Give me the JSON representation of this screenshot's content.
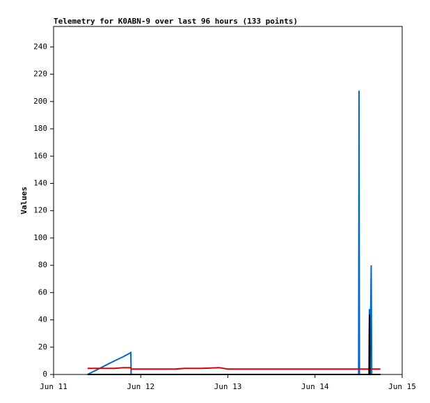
{
  "chart_data": {
    "type": "line",
    "title": "Telemetry for K0ABN-9 over last 96 hours (133 points)",
    "ylabel": "Values",
    "x": [
      0.39,
      0.5,
      0.6,
      0.7,
      0.8,
      0.886,
      0.89,
      1.0,
      1.4,
      1.5,
      1.7,
      1.9,
      2.0,
      2.5,
      3.0,
      3.5,
      3.505,
      3.51,
      3.62,
      3.625,
      3.63,
      3.645,
      3.65,
      3.655,
      3.75
    ],
    "series": [
      {
        "color": "#0066cc",
        "values": [
          0,
          3.5,
          6.8,
          10,
          13,
          16,
          0,
          0,
          0,
          0,
          0,
          0,
          0,
          0,
          0,
          0,
          208,
          0,
          0,
          48,
          0,
          80,
          0,
          0,
          null
        ]
      },
      {
        "color": "#dd0000",
        "values": [
          4.5,
          4.5,
          4.5,
          4.5,
          5,
          5,
          4,
          4,
          4,
          4.5,
          4.5,
          5,
          4,
          4,
          4,
          4,
          4,
          4,
          4,
          4,
          4,
          4,
          4,
          4,
          4
        ]
      },
      {
        "color": "#000000",
        "values": [
          0,
          0,
          0,
          0,
          0,
          0,
          0,
          0,
          0,
          0,
          0,
          0,
          0,
          0,
          0,
          0,
          0,
          0,
          0,
          44,
          0,
          0,
          0,
          0,
          0
        ]
      }
    ],
    "xlim": [
      0,
      4
    ],
    "xticks": [
      {
        "value": 0,
        "label": "Jun 11"
      },
      {
        "value": 1,
        "label": "Jun 12"
      },
      {
        "value": 2,
        "label": "Jun 13"
      },
      {
        "value": 3,
        "label": "Jun 14"
      },
      {
        "value": 4,
        "label": "Jun 15"
      }
    ],
    "ylim": [
      0,
      255
    ],
    "yticks": [
      0,
      20,
      40,
      60,
      80,
      100,
      120,
      140,
      160,
      180,
      200,
      220,
      240
    ]
  }
}
